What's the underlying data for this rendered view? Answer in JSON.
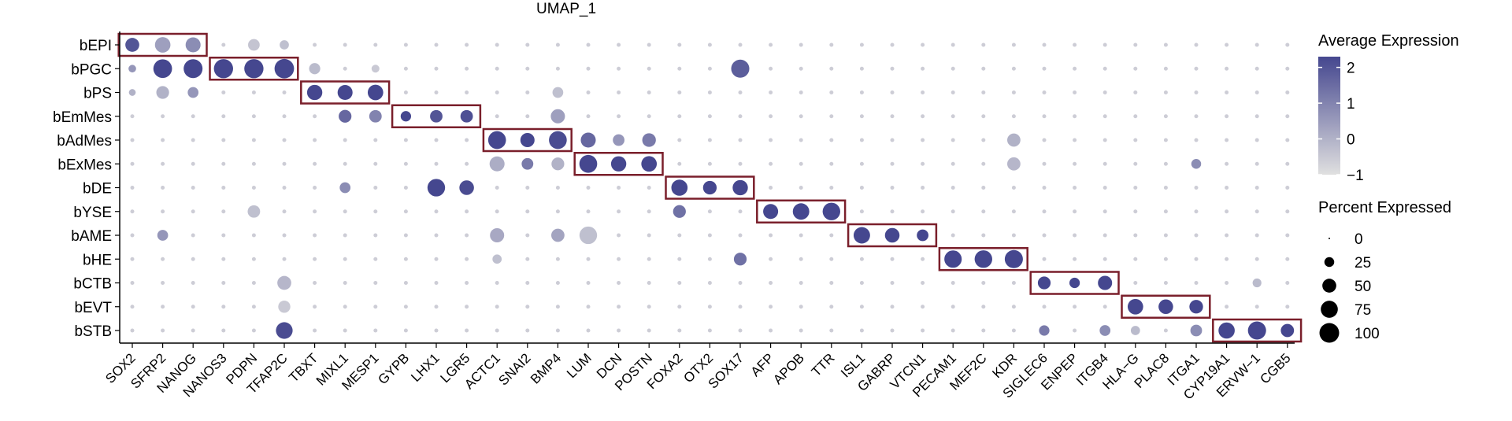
{
  "chart_data": {
    "type": "dotplot",
    "title": "UMAP_1",
    "rows": [
      "bEPI",
      "bPGC",
      "bPS",
      "bEmMes",
      "bAdMes",
      "bExMes",
      "bDE",
      "bYSE",
      "bAME",
      "bHE",
      "bCTB",
      "bEVT",
      "bSTB"
    ],
    "genes": [
      "SOX2",
      "SFRP2",
      "NANOG",
      "NANOS3",
      "PDPN",
      "TFAP2C",
      "TBXT",
      "MIXL1",
      "MESP1",
      "GYPB",
      "LHX1",
      "LGR5",
      "ACTC1",
      "SNAI2",
      "BMP4",
      "LUM",
      "DCN",
      "POSTN",
      "FOXA2",
      "OTX2",
      "SOX17",
      "AFP",
      "APOB",
      "TTR",
      "ISL1",
      "GABRP",
      "VTCN1",
      "PECAM1",
      "MEF2C",
      "KDR",
      "SIGLEC6",
      "ENPEP",
      "ITGB4",
      "HLA−G",
      "PLAC8",
      "ITGA1",
      "CYP19A1",
      "ERVW−1",
      "CGB5"
    ],
    "points": [
      {
        "row": "bEPI",
        "gene": "SOX2",
        "pct": 50,
        "avg": 2.0
      },
      {
        "row": "bEPI",
        "gene": "SFRP2",
        "pct": 62,
        "avg": 0.4
      },
      {
        "row": "bEPI",
        "gene": "NANOG",
        "pct": 58,
        "avg": 0.8
      },
      {
        "row": "bEPI",
        "gene": "PDPN",
        "pct": 35,
        "avg": -0.4
      },
      {
        "row": "bEPI",
        "gene": "TFAP2C",
        "pct": 22,
        "avg": -0.3
      },
      {
        "row": "bPGC",
        "gene": "SOX2",
        "pct": 15,
        "avg": 0.6
      },
      {
        "row": "bPGC",
        "gene": "SFRP2",
        "pct": 90,
        "avg": 2.3
      },
      {
        "row": "bPGC",
        "gene": "NANOG",
        "pct": 92,
        "avg": 2.3
      },
      {
        "row": "bPGC",
        "gene": "NANOS3",
        "pct": 95,
        "avg": 2.3
      },
      {
        "row": "bPGC",
        "gene": "PDPN",
        "pct": 95,
        "avg": 2.3
      },
      {
        "row": "bPGC",
        "gene": "TFAP2C",
        "pct": 98,
        "avg": 2.3
      },
      {
        "row": "bPGC",
        "gene": "TBXT",
        "pct": 32,
        "avg": -0.2
      },
      {
        "row": "bPGC",
        "gene": "MESP1",
        "pct": 16,
        "avg": -0.5
      },
      {
        "row": "bPGC",
        "gene": "SOX17",
        "pct": 85,
        "avg": 1.8
      },
      {
        "row": "bPS",
        "gene": "SOX2",
        "pct": 12,
        "avg": 0.0
      },
      {
        "row": "bPS",
        "gene": "SFRP2",
        "pct": 42,
        "avg": 0.0
      },
      {
        "row": "bPS",
        "gene": "NANOG",
        "pct": 30,
        "avg": 0.6
      },
      {
        "row": "bPS",
        "gene": "TBXT",
        "pct": 60,
        "avg": 2.3
      },
      {
        "row": "bPS",
        "gene": "MIXL1",
        "pct": 58,
        "avg": 2.3
      },
      {
        "row": "bPS",
        "gene": "MESP1",
        "pct": 62,
        "avg": 2.3
      },
      {
        "row": "bPS",
        "gene": "BMP4",
        "pct": 30,
        "avg": -0.3
      },
      {
        "row": "bEmMes",
        "gene": "MIXL1",
        "pct": 42,
        "avg": 1.6
      },
      {
        "row": "bEmMes",
        "gene": "MESP1",
        "pct": 40,
        "avg": 1.0
      },
      {
        "row": "bEmMes",
        "gene": "GYPB",
        "pct": 28,
        "avg": 2.3
      },
      {
        "row": "bEmMes",
        "gene": "LHX1",
        "pct": 40,
        "avg": 2.0
      },
      {
        "row": "bEmMes",
        "gene": "LGR5",
        "pct": 40,
        "avg": 2.1
      },
      {
        "row": "bEmMes",
        "gene": "BMP4",
        "pct": 52,
        "avg": 0.4
      },
      {
        "row": "bAdMes",
        "gene": "ACTC1",
        "pct": 82,
        "avg": 2.3
      },
      {
        "row": "bAdMes",
        "gene": "SNAI2",
        "pct": 52,
        "avg": 2.3
      },
      {
        "row": "bAdMes",
        "gene": "BMP4",
        "pct": 82,
        "avg": 2.2
      },
      {
        "row": "bAdMes",
        "gene": "LUM",
        "pct": 58,
        "avg": 1.6
      },
      {
        "row": "bAdMes",
        "gene": "DCN",
        "pct": 35,
        "avg": 0.6
      },
      {
        "row": "bAdMes",
        "gene": "POSTN",
        "pct": 48,
        "avg": 1.2
      },
      {
        "row": "bAdMes",
        "gene": "KDR",
        "pct": 45,
        "avg": 0.0
      },
      {
        "row": "bExMes",
        "gene": "ACTC1",
        "pct": 58,
        "avg": 0.1
      },
      {
        "row": "bExMes",
        "gene": "SNAI2",
        "pct": 35,
        "avg": 1.2
      },
      {
        "row": "bExMes",
        "gene": "BMP4",
        "pct": 42,
        "avg": 0.0
      },
      {
        "row": "bExMes",
        "gene": "LUM",
        "pct": 82,
        "avg": 2.3
      },
      {
        "row": "bExMes",
        "gene": "DCN",
        "pct": 60,
        "avg": 2.3
      },
      {
        "row": "bExMes",
        "gene": "POSTN",
        "pct": 62,
        "avg": 2.3
      },
      {
        "row": "bExMes",
        "gene": "KDR",
        "pct": 45,
        "avg": -0.1
      },
      {
        "row": "bExMes",
        "gene": "ITGA1",
        "pct": 25,
        "avg": 0.8
      },
      {
        "row": "bDE",
        "gene": "MIXL1",
        "pct": 30,
        "avg": 0.8
      },
      {
        "row": "bDE",
        "gene": "LHX1",
        "pct": 80,
        "avg": 2.3
      },
      {
        "row": "bDE",
        "gene": "LGR5",
        "pct": 55,
        "avg": 2.2
      },
      {
        "row": "bDE",
        "gene": "FOXA2",
        "pct": 68,
        "avg": 2.3
      },
      {
        "row": "bDE",
        "gene": "OTX2",
        "pct": 48,
        "avg": 2.3
      },
      {
        "row": "bDE",
        "gene": "SOX17",
        "pct": 60,
        "avg": 2.3
      },
      {
        "row": "bYSE",
        "gene": "PDPN",
        "pct": 40,
        "avg": -0.3
      },
      {
        "row": "bYSE",
        "gene": "FOXA2",
        "pct": 42,
        "avg": 1.4
      },
      {
        "row": "bYSE",
        "gene": "AFP",
        "pct": 58,
        "avg": 2.3
      },
      {
        "row": "bYSE",
        "gene": "APOB",
        "pct": 70,
        "avg": 2.3
      },
      {
        "row": "bYSE",
        "gene": "TTR",
        "pct": 80,
        "avg": 2.3
      },
      {
        "row": "bAME",
        "gene": "SFRP2",
        "pct": 30,
        "avg": 0.6
      },
      {
        "row": "bAME",
        "gene": "ACTC1",
        "pct": 52,
        "avg": 0.2
      },
      {
        "row": "bAME",
        "gene": "BMP4",
        "pct": 45,
        "avg": 0.3
      },
      {
        "row": "bAME",
        "gene": "LUM",
        "pct": 80,
        "avg": -0.3
      },
      {
        "row": "bAME",
        "gene": "ISL1",
        "pct": 70,
        "avg": 2.3
      },
      {
        "row": "bAME",
        "gene": "GABRP",
        "pct": 55,
        "avg": 2.3
      },
      {
        "row": "bAME",
        "gene": "VTCN1",
        "pct": 35,
        "avg": 2.3
      },
      {
        "row": "bHE",
        "gene": "ACTC1",
        "pct": 22,
        "avg": -0.3
      },
      {
        "row": "bHE",
        "gene": "SOX17",
        "pct": 42,
        "avg": 1.4
      },
      {
        "row": "bHE",
        "gene": "PECAM1",
        "pct": 78,
        "avg": 2.3
      },
      {
        "row": "bHE",
        "gene": "MEF2C",
        "pct": 80,
        "avg": 2.3
      },
      {
        "row": "bHE",
        "gene": "KDR",
        "pct": 85,
        "avg": 2.3
      },
      {
        "row": "bCTB",
        "gene": "TFAP2C",
        "pct": 50,
        "avg": -0.1
      },
      {
        "row": "bCTB",
        "gene": "SIGLEC6",
        "pct": 42,
        "avg": 2.3
      },
      {
        "row": "bCTB",
        "gene": "ENPEP",
        "pct": 28,
        "avg": 2.3
      },
      {
        "row": "bCTB",
        "gene": "ITGB4",
        "pct": 52,
        "avg": 2.3
      },
      {
        "row": "bCTB",
        "gene": "ERVW−1",
        "pct": 20,
        "avg": -0.2
      },
      {
        "row": "bEVT",
        "gene": "TFAP2C",
        "pct": 38,
        "avg": -0.5
      },
      {
        "row": "bEVT",
        "gene": "HLA−G",
        "pct": 62,
        "avg": 2.3
      },
      {
        "row": "bEVT",
        "gene": "PLAC8",
        "pct": 55,
        "avg": 2.3
      },
      {
        "row": "bEVT",
        "gene": "ITGA1",
        "pct": 48,
        "avg": 2.3
      },
      {
        "row": "bSTB",
        "gene": "TFAP2C",
        "pct": 72,
        "avg": 2.2
      },
      {
        "row": "bSTB",
        "gene": "SIGLEC6",
        "pct": 28,
        "avg": 1.2
      },
      {
        "row": "bSTB",
        "gene": "ITGB4",
        "pct": 30,
        "avg": 0.8
      },
      {
        "row": "bSTB",
        "gene": "HLA−G",
        "pct": 22,
        "avg": -0.2
      },
      {
        "row": "bSTB",
        "gene": "ITGA1",
        "pct": 35,
        "avg": 0.8
      },
      {
        "row": "bSTB",
        "gene": "CYP19A1",
        "pct": 68,
        "avg": 2.3
      },
      {
        "row": "bSTB",
        "gene": "ERVW−1",
        "pct": 85,
        "avg": 2.3
      },
      {
        "row": "bSTB",
        "gene": "CGB5",
        "pct": 45,
        "avg": 2.3
      }
    ],
    "default_point": {
      "pct": 4,
      "avg": -0.6
    },
    "highlight_boxes": [
      {
        "row": "bEPI",
        "genes": [
          "SOX2",
          "NANOG"
        ]
      },
      {
        "row": "bPGC",
        "genes": [
          "NANOS3",
          "TFAP2C"
        ]
      },
      {
        "row": "bPS",
        "genes": [
          "TBXT",
          "MESP1"
        ]
      },
      {
        "row": "bEmMes",
        "genes": [
          "GYPB",
          "LGR5"
        ]
      },
      {
        "row": "bAdMes",
        "genes": [
          "ACTC1",
          "BMP4"
        ]
      },
      {
        "row": "bExMes",
        "genes": [
          "LUM",
          "POSTN"
        ]
      },
      {
        "row": "bDE",
        "genes": [
          "FOXA2",
          "SOX17"
        ]
      },
      {
        "row": "bYSE",
        "genes": [
          "AFP",
          "TTR"
        ]
      },
      {
        "row": "bAME",
        "genes": [
          "ISL1",
          "VTCN1"
        ]
      },
      {
        "row": "bHE",
        "genes": [
          "PECAM1",
          "KDR"
        ]
      },
      {
        "row": "bCTB",
        "genes": [
          "SIGLEC6",
          "ITGB4"
        ]
      },
      {
        "row": "bEVT",
        "genes": [
          "HLA−G",
          "ITGA1"
        ]
      },
      {
        "row": "bSTB",
        "genes": [
          "CYP19A1",
          "CGB5"
        ]
      }
    ],
    "box_color": "#7a1f2b",
    "color_scale": {
      "low": "#e0e0e0",
      "high": "#45478f",
      "min": -1,
      "max": 2.3
    },
    "legend_color": {
      "title": "Average Expression",
      "ticks": [
        2,
        1,
        0,
        -1
      ],
      "tick_labels": [
        "2",
        "1",
        "0",
        "−1"
      ]
    },
    "legend_size": {
      "title": "Percent Expressed",
      "values": [
        0,
        25,
        50,
        75,
        100
      ],
      "labels": [
        "0",
        "25",
        "50",
        "75",
        "100"
      ]
    }
  }
}
